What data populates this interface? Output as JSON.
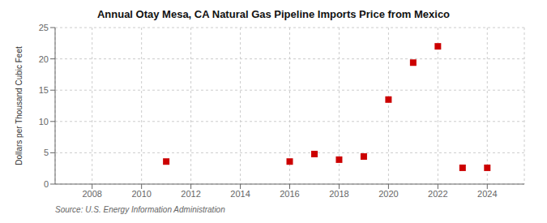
{
  "chart_data": {
    "type": "scatter",
    "title": "Annual Otay Mesa, CA Natural Gas Pipeline Imports Price from Mexico",
    "ylabel": "Dollars per Thousand Cubic Feet",
    "source": "Source: U.S. Energy Information Administration",
    "x": [
      2011,
      2016,
      2017,
      2018,
      2019,
      2020,
      2021,
      2022,
      2023,
      2024
    ],
    "values": [
      3.6,
      3.6,
      4.8,
      3.9,
      4.4,
      13.5,
      19.4,
      22.0,
      2.6,
      2.6
    ],
    "color": "#cc0000",
    "marker": "square",
    "xlim": [
      2006.5,
      2025.5
    ],
    "ylim": [
      0,
      25
    ],
    "xticks": [
      2008,
      2010,
      2012,
      2014,
      2016,
      2018,
      2020,
      2022,
      2024
    ],
    "yticks": [
      0,
      5,
      10,
      15,
      20,
      25
    ],
    "grid": true
  }
}
